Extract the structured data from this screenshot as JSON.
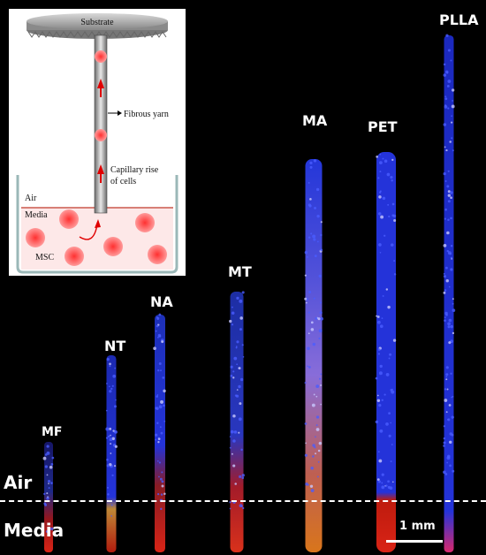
{
  "inset": {
    "substrate": "Substrate",
    "fibrous_yarn": "Fibrous yarn",
    "capillary_line1": "Capillary rise",
    "capillary_line2": "of cells",
    "air": "Air",
    "media": "Media",
    "msc": "MSC"
  },
  "samples": [
    {
      "label": "MF"
    },
    {
      "label": "NT"
    },
    {
      "label": "NA"
    },
    {
      "label": "MT"
    },
    {
      "label": "MA"
    },
    {
      "label": "PET"
    },
    {
      "label": "PLLA"
    }
  ],
  "regions": {
    "air": "Air",
    "media": "Media"
  },
  "scale_bar": "1 mm",
  "colors": {
    "nuclei": "#2a3cff",
    "actin": "#ff2a1a",
    "background": "#000000"
  }
}
